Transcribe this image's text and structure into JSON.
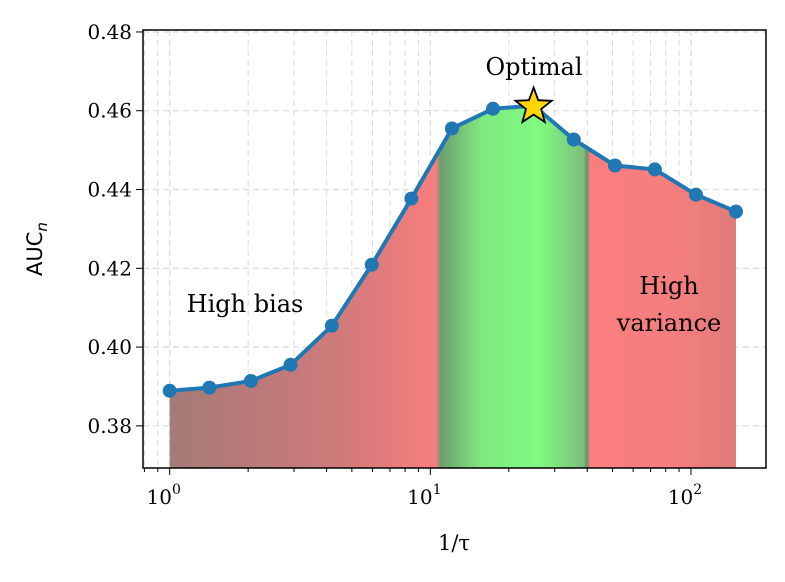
{
  "chart_data": {
    "type": "line",
    "xlabel": "1/τ",
    "ylabel": "AUC",
    "ylabel_sub": "n",
    "x_scale": "log",
    "xlim": [
      0.79,
      194
    ],
    "ylim": [
      0.3693,
      0.4805
    ],
    "grid": true,
    "xticks": [
      {
        "base": "10",
        "exp": "0",
        "value": 1
      },
      {
        "base": "10",
        "exp": "1",
        "value": 10
      },
      {
        "base": "10",
        "exp": "2",
        "value": 100
      }
    ],
    "yticks": [
      "0.38",
      "0.40",
      "0.42",
      "0.44",
      "0.46",
      "0.48"
    ],
    "x": [
      1.0,
      1.42,
      2.05,
      2.91,
      4.19,
      5.96,
      8.46,
      12.1,
      17.4,
      24.9,
      35.5,
      51.1,
      72.7,
      104.5,
      148.8
    ],
    "y": [
      0.3889,
      0.3897,
      0.3914,
      0.3955,
      0.4054,
      0.4209,
      0.4377,
      0.4555,
      0.4605,
      0.4613,
      0.4527,
      0.4461,
      0.4451,
      0.4387,
      0.4344
    ],
    "line_color": "#1f77b4",
    "optimal_index": 9,
    "star_color": "#ffd700",
    "green_region": [
      11,
      40
    ],
    "annotations": {
      "optimal": "Optimal",
      "high_bias": "High bias",
      "high_variance_1": "High",
      "high_variance_2": "variance"
    }
  }
}
